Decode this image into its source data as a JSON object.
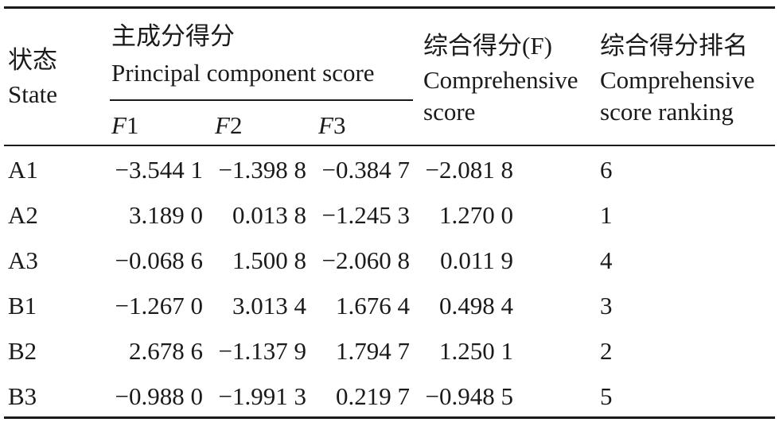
{
  "table": {
    "header": {
      "state_cn": "状态",
      "state_en": "State",
      "pcs_cn": "主成分得分",
      "pcs_en": "Principal component score",
      "f1_var": "F",
      "f1_num": "1",
      "f2_var": "F",
      "f2_num": "2",
      "f3_var": "F",
      "f3_num": "3",
      "comp_cn": "综合得分(F)",
      "comp_en1": "Comprehensive",
      "comp_en2": "score",
      "rank_cn": "综合得分排名",
      "rank_en1": "Comprehensive",
      "rank_en2": "score ranking"
    },
    "rows": [
      {
        "state": "A1",
        "f1": "−3.544 1",
        "f2": "−1.398 8",
        "f3": "−0.384 7",
        "f": "−2.081 8",
        "rank": "6"
      },
      {
        "state": "A2",
        "f1": "3.189 0",
        "f2": "0.013 8",
        "f3": "−1.245 3",
        "f": "1.270 0",
        "rank": "1"
      },
      {
        "state": "A3",
        "f1": "−0.068 6",
        "f2": "1.500 8",
        "f3": "−2.060 8",
        "f": "0.011 9",
        "rank": "4"
      },
      {
        "state": "B1",
        "f1": "−1.267 0",
        "f2": "3.013 4",
        "f3": "1.676 4",
        "f": "0.498 4",
        "rank": "3"
      },
      {
        "state": "B2",
        "f1": "2.678 6",
        "f2": "−1.137 9",
        "f3": "1.794 7",
        "f": "1.250 1",
        "rank": "2"
      },
      {
        "state": "B3",
        "f1": "−0.988 0",
        "f2": "−1.991 3",
        "f3": "0.219 7",
        "f": "−0.948 5",
        "rank": "5"
      }
    ]
  }
}
